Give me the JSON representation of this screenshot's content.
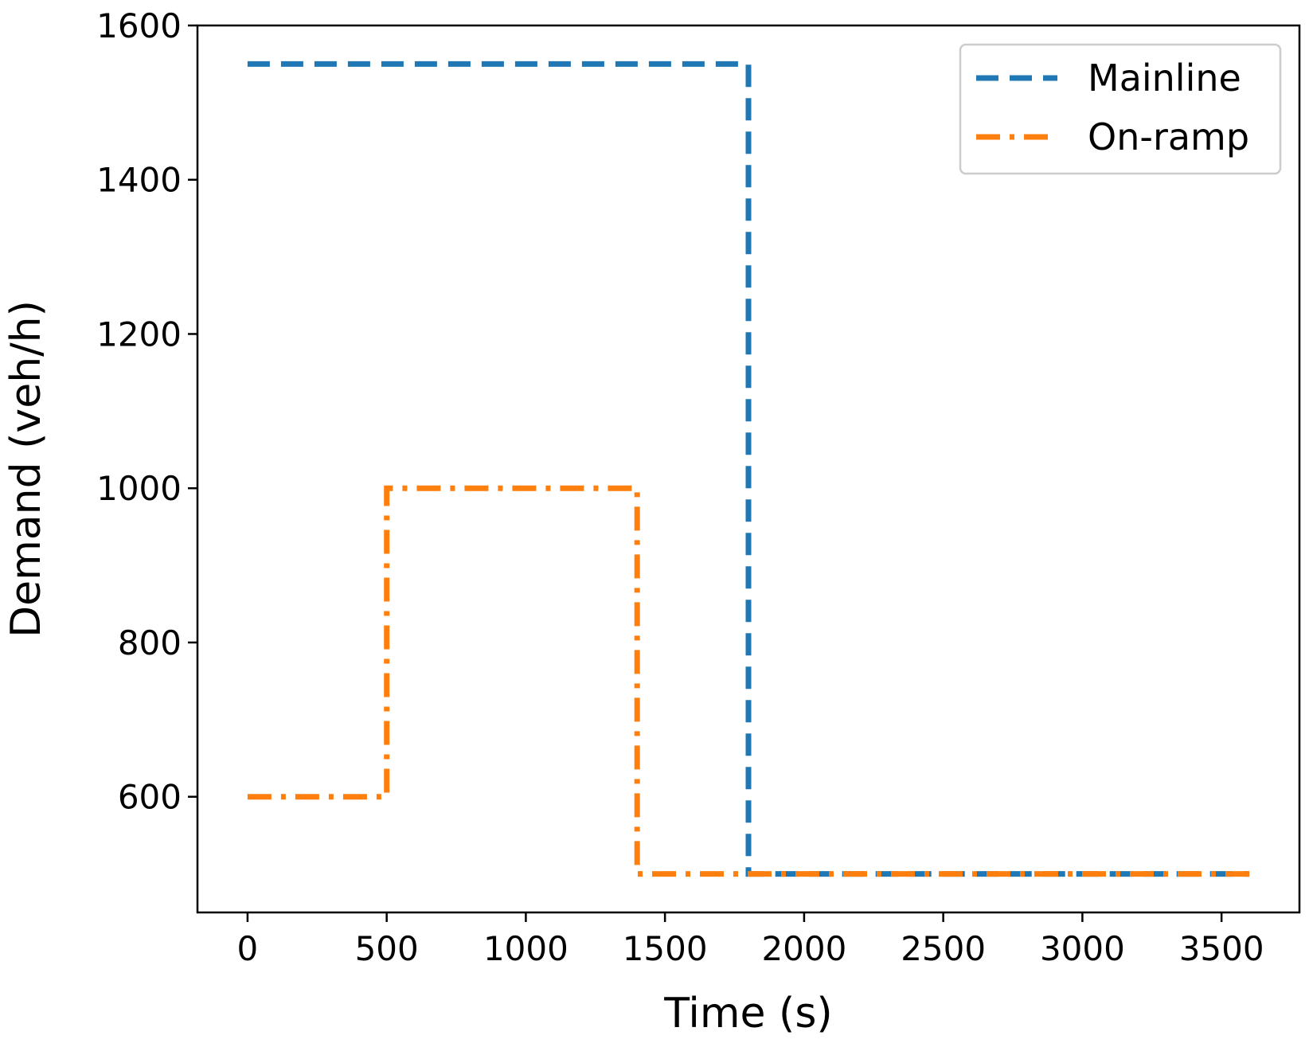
{
  "chart_data": {
    "type": "line",
    "title": "",
    "xlabel": "Time (s)",
    "ylabel": "Demand (veh/h)",
    "xlim": [
      -180,
      3780
    ],
    "ylim": [
      450,
      1600
    ],
    "x_ticks": [
      0,
      500,
      1000,
      1500,
      2000,
      2500,
      3000,
      3500
    ],
    "y_ticks": [
      600,
      800,
      1000,
      1200,
      1400,
      1600
    ],
    "grid": false,
    "legend_position": "top-right",
    "series": [
      {
        "name": "Mainline",
        "color": "#1f77b4",
        "line_style": "dashed",
        "x": [
          0,
          1800,
          1800,
          3600
        ],
        "y": [
          1550,
          1550,
          500,
          500
        ]
      },
      {
        "name": "On-ramp",
        "color": "#ff7f0e",
        "line_style": "dash-dot",
        "x": [
          0,
          500,
          500,
          1400,
          1400,
          3600
        ],
        "y": [
          600,
          600,
          1000,
          1000,
          500,
          500
        ]
      }
    ]
  }
}
